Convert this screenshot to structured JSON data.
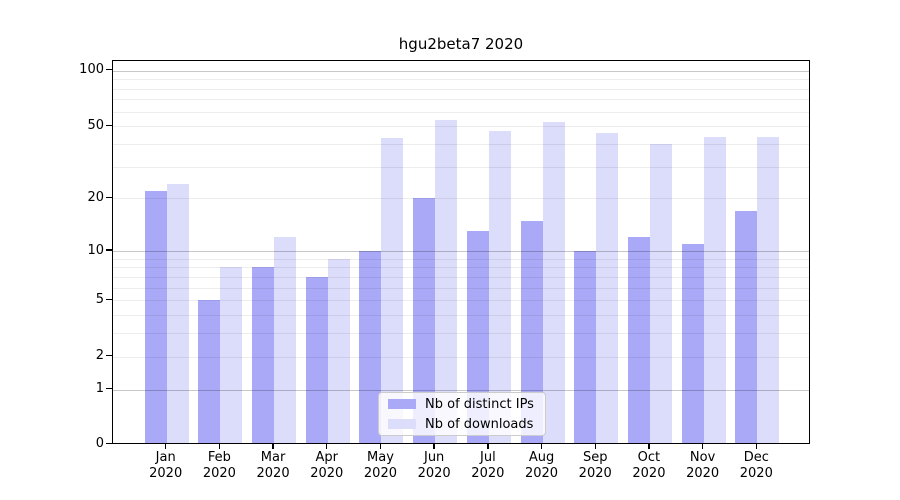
{
  "chart_data": {
    "type": "bar",
    "title": "hgu2beta7 2020",
    "categories": [
      "Jan 2020",
      "Feb 2020",
      "Mar 2020",
      "Apr 2020",
      "May 2020",
      "Jun 2020",
      "Jul 2020",
      "Aug 2020",
      "Sep 2020",
      "Oct 2020",
      "Nov 2020",
      "Dec 2020"
    ],
    "series": [
      {
        "name": "Nb of distinct IPs",
        "color": "#a9a9f8",
        "values": [
          22,
          5,
          8,
          7,
          10,
          20,
          13,
          15,
          10,
          12,
          11,
          17
        ]
      },
      {
        "name": "Nb of downloads",
        "color": "#dcdcfb",
        "values": [
          24,
          8,
          12,
          9,
          43,
          54,
          47,
          53,
          46,
          40,
          44,
          44
        ]
      }
    ],
    "yscale": "log1p",
    "ylim": [
      0,
      115
    ],
    "ytick_labels": [
      "100",
      "50",
      "20",
      "10",
      "5",
      "2",
      "1",
      "0"
    ],
    "yticks": [
      100,
      50,
      20,
      10,
      5,
      2,
      1,
      0
    ],
    "major_gridlines": [
      1,
      10,
      100
    ],
    "minor_gridlines": [
      2,
      3,
      4,
      5,
      6,
      7,
      8,
      9,
      20,
      30,
      40,
      50,
      60,
      70,
      80,
      90
    ],
    "grid": true,
    "legend_position": "lower-center",
    "colors": {
      "major_grid": "rgba(0,0,0,0.22)",
      "minor_grid": "rgba(0,0,0,0.07)",
      "axis": "#000000",
      "background": "#ffffff"
    }
  }
}
